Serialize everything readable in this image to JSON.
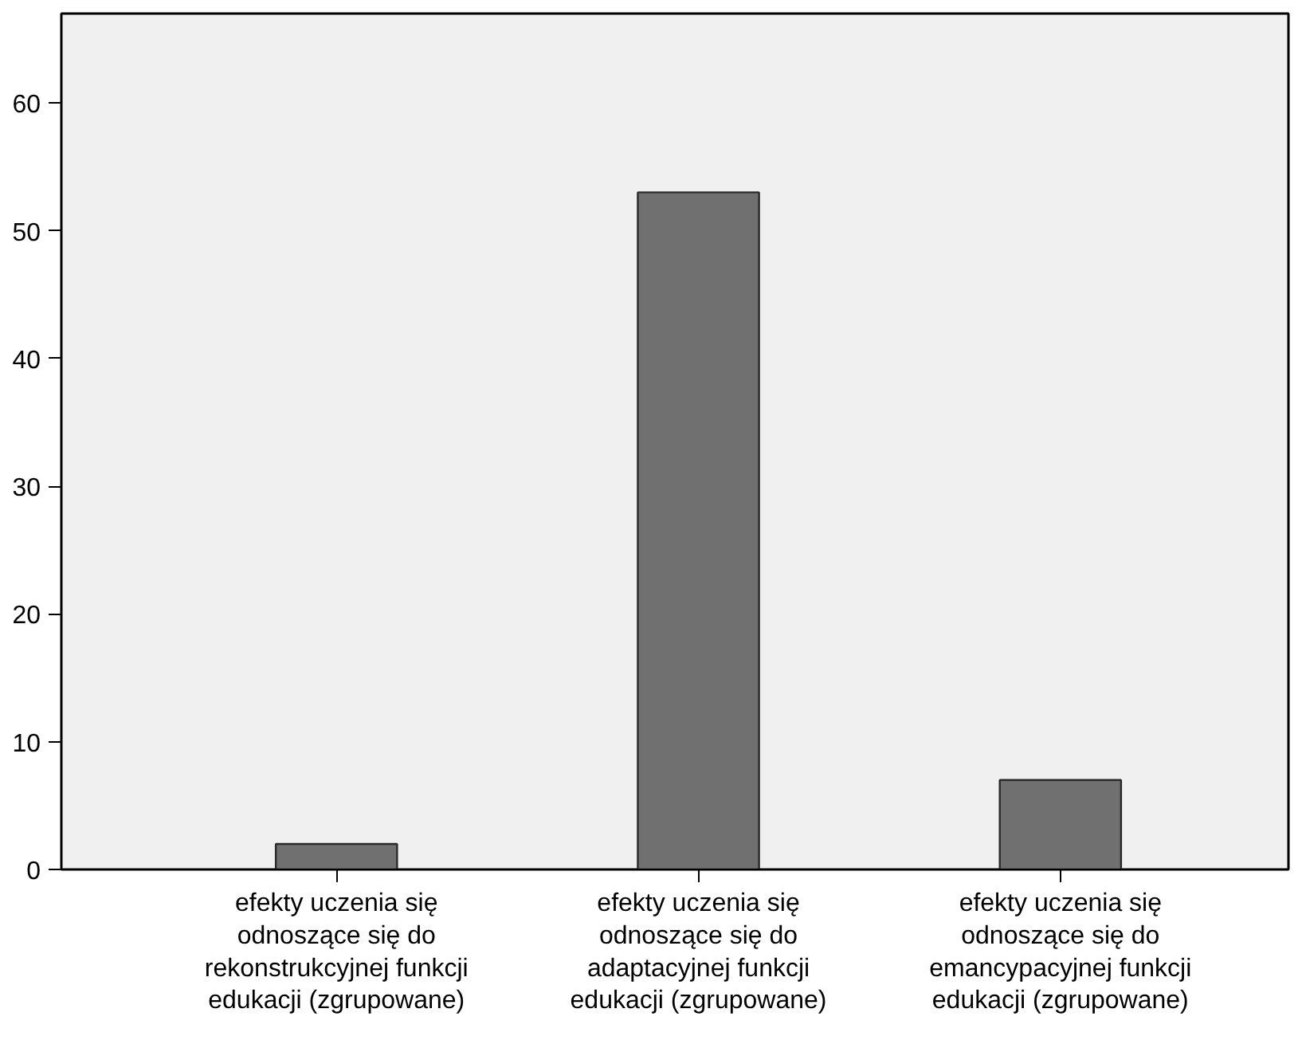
{
  "chart_data": {
    "type": "bar",
    "categories": [
      "efekty uczenia się odnoszące się do rekonstrukcyjnej funkcji edukacji (zgrupowane)",
      "efekty uczenia się odnoszące się do adaptacyjnej funkcji edukacji (zgrupowane)",
      "efekty uczenia się odnoszące się do emancypacyjnej funkcji edukacji (zgrupowane)"
    ],
    "values": [
      2,
      53,
      7
    ],
    "color": "#707070",
    "ylim": [
      0,
      67
    ],
    "yticks": [
      0,
      10,
      20,
      30,
      40,
      50,
      60
    ],
    "grid": false
  }
}
